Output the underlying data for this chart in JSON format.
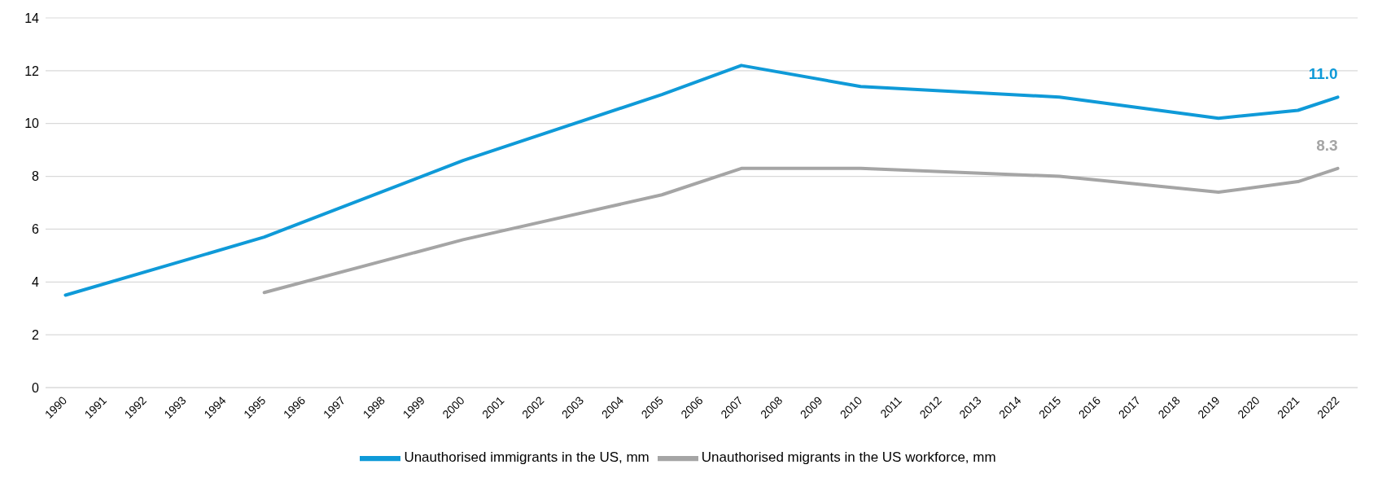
{
  "chart_data": {
    "type": "line",
    "xlim": [
      1989.5,
      2022.5
    ],
    "xticks": [
      1990,
      1991,
      1992,
      1993,
      1994,
      1995,
      1996,
      1997,
      1998,
      1999,
      2000,
      2001,
      2002,
      2003,
      2004,
      2005,
      2006,
      2007,
      2008,
      2009,
      2010,
      2011,
      2012,
      2013,
      2014,
      2015,
      2016,
      2017,
      2018,
      2019,
      2020,
      2021,
      2022
    ],
    "ylim": [
      0,
      14
    ],
    "yticks": [
      0,
      2,
      4,
      6,
      8,
      10,
      12,
      14
    ],
    "grid": "y",
    "legend": "bottom",
    "marker": "none",
    "line_style": "solid",
    "series": [
      {
        "name": "Unauthorised immigrants in the US, mm",
        "color": "#0f9ad8",
        "x": [
          1990,
          1995,
          2000,
          2005,
          2007,
          2010,
          2015,
          2019,
          2021,
          2022
        ],
        "values": [
          3.5,
          5.7,
          8.6,
          11.1,
          12.2,
          11.4,
          11.0,
          10.2,
          10.5,
          11.0
        ],
        "value_labels": [
          null,
          null,
          null,
          null,
          null,
          null,
          null,
          null,
          null,
          "11.0"
        ]
      },
      {
        "name": "Unauthorised migrants in the US workforce, mm",
        "color": "#a5a5a5",
        "x": [
          1995,
          2000,
          2005,
          2007,
          2010,
          2015,
          2019,
          2021,
          2022
        ],
        "values": [
          3.6,
          5.6,
          7.3,
          8.3,
          8.3,
          8.0,
          7.4,
          7.8,
          8.3
        ],
        "value_labels": [
          null,
          null,
          null,
          null,
          null,
          null,
          null,
          null,
          "8.3"
        ]
      }
    ]
  }
}
